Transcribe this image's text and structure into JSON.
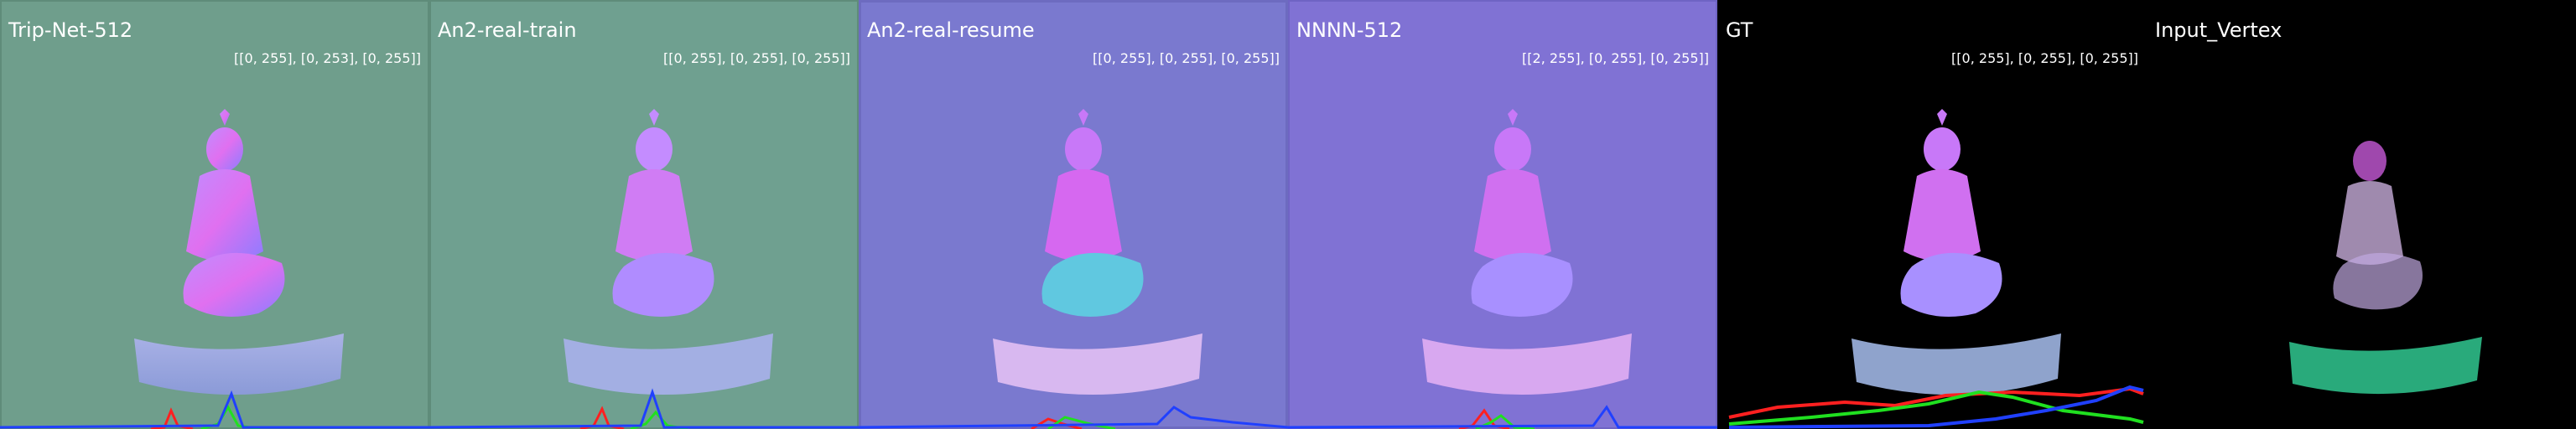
{
  "panels": [
    {
      "label": "Trip-Net-512",
      "range": "[[0, 255], [0, 253], [0, 255]]"
    },
    {
      "label": "An2-real-train",
      "range": "[[0, 255], [0, 255], [0, 255]]"
    },
    {
      "label": "An2-real-resume",
      "range": "[[0, 255], [0, 255], [0, 255]]"
    },
    {
      "label": "NNNN-512",
      "range": "[[2, 255], [0, 255], [0, 255]]"
    },
    {
      "label": "GT",
      "range": "[[0, 255], [0, 255], [0, 255]]"
    },
    {
      "label": "Input_Vertex",
      "range": ""
    }
  ],
  "colors": {
    "histogram_red": "#ff2020",
    "histogram_green": "#20e020",
    "histogram_blue": "#2040ff"
  }
}
